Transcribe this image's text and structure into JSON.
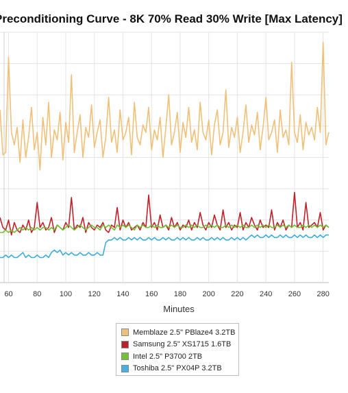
{
  "chart_data": {
    "type": "line",
    "title": "Preconditioning Curve - 8K 70% Read 30% Write [Max Latency]",
    "xlabel": "Minutes",
    "ylabel": "",
    "x_ticks": [
      60,
      80,
      100,
      120,
      140,
      160,
      180,
      200,
      220,
      240,
      260,
      280
    ],
    "xlim": [
      54,
      284
    ],
    "y_tick_count": 8,
    "grid": true,
    "legend_position": "bottom",
    "series": [
      {
        "name": "Memblaze 2.5\" PBlaze4 3.2TB",
        "color": "#f0c078",
        "swatch": "#efbf7d",
        "x": [
          54,
          56,
          58,
          60,
          62,
          64,
          66,
          68,
          70,
          72,
          74,
          76,
          78,
          80,
          82,
          84,
          86,
          88,
          90,
          92,
          94,
          96,
          98,
          100,
          102,
          104,
          106,
          108,
          110,
          112,
          114,
          116,
          118,
          120,
          122,
          124,
          126,
          128,
          130,
          132,
          134,
          136,
          138,
          140,
          142,
          144,
          146,
          148,
          150,
          152,
          154,
          156,
          158,
          160,
          162,
          164,
          166,
          168,
          170,
          172,
          174,
          176,
          178,
          180,
          182,
          184,
          186,
          188,
          190,
          192,
          194,
          196,
          198,
          200,
          202,
          204,
          206,
          208,
          210,
          212,
          214,
          216,
          218,
          220,
          222,
          224,
          226,
          228,
          230,
          232,
          234,
          236,
          238,
          240,
          242,
          244,
          246,
          248,
          250,
          252,
          254,
          256,
          258,
          260,
          262,
          264,
          266,
          268,
          270,
          272,
          274,
          276,
          278,
          280,
          282,
          284
        ],
        "values": [
          0.69,
          0.51,
          0.52,
          0.9,
          0.6,
          0.55,
          0.62,
          0.48,
          0.65,
          0.5,
          0.58,
          0.7,
          0.53,
          0.6,
          0.45,
          0.66,
          0.55,
          0.72,
          0.5,
          0.61,
          0.57,
          0.68,
          0.49,
          0.64,
          0.56,
          0.83,
          0.52,
          0.6,
          0.67,
          0.5,
          0.62,
          0.58,
          0.71,
          0.54,
          0.6,
          0.65,
          0.5,
          0.58,
          0.74,
          0.56,
          0.61,
          0.52,
          0.69,
          0.57,
          0.6,
          0.66,
          0.51,
          0.72,
          0.58,
          0.55,
          0.63,
          0.6,
          0.7,
          0.53,
          0.61,
          0.57,
          0.66,
          0.5,
          0.62,
          0.75,
          0.55,
          0.6,
          0.68,
          0.52,
          0.64,
          0.58,
          0.7,
          0.56,
          0.61,
          0.53,
          0.72,
          0.6,
          0.57,
          0.65,
          0.51,
          0.63,
          0.69,
          0.55,
          0.6,
          0.77,
          0.54,
          0.62,
          0.58,
          0.66,
          0.52,
          0.6,
          0.71,
          0.56,
          0.63,
          0.59,
          0.68,
          0.53,
          0.62,
          0.74,
          0.57,
          0.6,
          0.65,
          0.52,
          0.69,
          0.58,
          0.61,
          0.55,
          0.88,
          0.6,
          0.56,
          0.67,
          0.53,
          0.64,
          0.59,
          0.62,
          0.57,
          0.7,
          0.6,
          0.96,
          0.55,
          0.6
        ]
      },
      {
        "name": "Samsung 2.5\" XS1715 1.6TB",
        "color": "#c0202a",
        "swatch": "#b8232c",
        "x": [
          54,
          56,
          58,
          60,
          62,
          64,
          66,
          68,
          70,
          72,
          74,
          76,
          78,
          80,
          82,
          84,
          86,
          88,
          90,
          92,
          94,
          96,
          98,
          100,
          102,
          104,
          106,
          108,
          110,
          112,
          114,
          116,
          118,
          120,
          122,
          124,
          126,
          128,
          130,
          132,
          134,
          136,
          138,
          140,
          142,
          144,
          146,
          148,
          150,
          152,
          154,
          156,
          158,
          160,
          162,
          164,
          166,
          168,
          170,
          172,
          174,
          176,
          178,
          180,
          182,
          184,
          186,
          188,
          190,
          192,
          194,
          196,
          198,
          200,
          202,
          204,
          206,
          208,
          210,
          212,
          214,
          216,
          218,
          220,
          222,
          224,
          226,
          228,
          230,
          232,
          234,
          236,
          238,
          240,
          242,
          244,
          246,
          248,
          250,
          252,
          254,
          256,
          258,
          260,
          262,
          264,
          266,
          268,
          270,
          272,
          274,
          276,
          278,
          280,
          282,
          284
        ],
        "values": [
          0.26,
          0.22,
          0.21,
          0.25,
          0.19,
          0.24,
          0.21,
          0.2,
          0.23,
          0.21,
          0.25,
          0.2,
          0.22,
          0.32,
          0.22,
          0.24,
          0.21,
          0.22,
          0.26,
          0.2,
          0.23,
          0.22,
          0.21,
          0.24,
          0.22,
          0.34,
          0.21,
          0.23,
          0.22,
          0.26,
          0.2,
          0.24,
          0.22,
          0.21,
          0.23,
          0.22,
          0.24,
          0.21,
          0.2,
          0.23,
          0.22,
          0.3,
          0.21,
          0.25,
          0.22,
          0.24,
          0.21,
          0.22,
          0.23,
          0.21,
          0.24,
          0.22,
          0.35,
          0.22,
          0.24,
          0.21,
          0.27,
          0.22,
          0.23,
          0.21,
          0.26,
          0.22,
          0.24,
          0.21,
          0.23,
          0.22,
          0.25,
          0.21,
          0.24,
          0.22,
          0.28,
          0.23,
          0.21,
          0.24,
          0.22,
          0.27,
          0.23,
          0.21,
          0.29,
          0.22,
          0.24,
          0.21,
          0.23,
          0.22,
          0.28,
          0.21,
          0.24,
          0.22,
          0.26,
          0.23,
          0.21,
          0.25,
          0.22,
          0.23,
          0.22,
          0.29,
          0.21,
          0.24,
          0.22,
          0.25,
          0.21,
          0.23,
          0.22,
          0.36,
          0.22,
          0.24,
          0.21,
          0.32,
          0.22,
          0.23,
          0.24,
          0.22,
          0.28,
          0.21,
          0.23,
          0.22
        ]
      },
      {
        "name": "Intel 2.5\" P3700 2TB",
        "color": "#6cc030",
        "swatch": "#74c13a",
        "x": [
          54,
          56,
          58,
          60,
          62,
          64,
          66,
          68,
          70,
          72,
          74,
          76,
          78,
          80,
          82,
          84,
          86,
          88,
          90,
          92,
          94,
          96,
          98,
          100,
          102,
          104,
          106,
          108,
          110,
          112,
          114,
          116,
          118,
          120,
          122,
          124,
          126,
          128,
          130,
          132,
          134,
          136,
          138,
          140,
          142,
          144,
          146,
          148,
          150,
          152,
          154,
          156,
          158,
          160,
          162,
          164,
          166,
          168,
          170,
          172,
          174,
          176,
          178,
          180,
          182,
          184,
          186,
          188,
          190,
          192,
          194,
          196,
          198,
          200,
          202,
          204,
          206,
          208,
          210,
          212,
          214,
          216,
          218,
          220,
          222,
          224,
          226,
          228,
          230,
          232,
          234,
          236,
          238,
          240,
          242,
          244,
          246,
          248,
          250,
          252,
          254,
          256,
          258,
          260,
          262,
          264,
          266,
          268,
          270,
          272,
          274,
          276,
          278,
          280,
          282,
          284
        ],
        "values": [
          0.2,
          0.2,
          0.21,
          0.2,
          0.21,
          0.2,
          0.21,
          0.22,
          0.21,
          0.22,
          0.21,
          0.22,
          0.21,
          0.22,
          0.21,
          0.22,
          0.22,
          0.21,
          0.22,
          0.21,
          0.23,
          0.22,
          0.21,
          0.22,
          0.23,
          0.22,
          0.21,
          0.22,
          0.23,
          0.22,
          0.21,
          0.22,
          0.23,
          0.22,
          0.22,
          0.21,
          0.23,
          0.22,
          0.23,
          0.22,
          0.21,
          0.23,
          0.22,
          0.23,
          0.22,
          0.23,
          0.22,
          0.21,
          0.23,
          0.22,
          0.23,
          0.22,
          0.22,
          0.23,
          0.22,
          0.23,
          0.22,
          0.22,
          0.23,
          0.22,
          0.23,
          0.22,
          0.23,
          0.22,
          0.22,
          0.23,
          0.22,
          0.23,
          0.22,
          0.23,
          0.22,
          0.22,
          0.23,
          0.22,
          0.23,
          0.22,
          0.23,
          0.22,
          0.22,
          0.23,
          0.22,
          0.23,
          0.22,
          0.23,
          0.22,
          0.23,
          0.22,
          0.22,
          0.23,
          0.22,
          0.23,
          0.22,
          0.23,
          0.22,
          0.23,
          0.22,
          0.22,
          0.23,
          0.22,
          0.23,
          0.22,
          0.23,
          0.22,
          0.23,
          0.22,
          0.22,
          0.23,
          0.22,
          0.23,
          0.22,
          0.23,
          0.22,
          0.23,
          0.22,
          0.23,
          0.22
        ]
      },
      {
        "name": "Toshiba 2.5\" PX04P 3.2TB",
        "color": "#3aacdf",
        "swatch": "#48b1e0",
        "x": [
          54,
          56,
          58,
          60,
          62,
          64,
          66,
          68,
          70,
          72,
          74,
          76,
          78,
          80,
          82,
          84,
          86,
          88,
          90,
          92,
          94,
          96,
          98,
          100,
          102,
          104,
          106,
          108,
          110,
          112,
          114,
          116,
          118,
          120,
          122,
          124,
          126,
          128,
          130,
          132,
          134,
          136,
          138,
          140,
          142,
          144,
          146,
          148,
          150,
          152,
          154,
          156,
          158,
          160,
          162,
          164,
          166,
          168,
          170,
          172,
          174,
          176,
          178,
          180,
          182,
          184,
          186,
          188,
          190,
          192,
          194,
          196,
          198,
          200,
          202,
          204,
          206,
          208,
          210,
          212,
          214,
          216,
          218,
          220,
          222,
          224,
          226,
          228,
          230,
          232,
          234,
          236,
          238,
          240,
          242,
          244,
          246,
          248,
          250,
          252,
          254,
          256,
          258,
          260,
          262,
          264,
          266,
          268,
          270,
          272,
          274,
          276,
          278,
          280,
          282,
          284
        ],
        "values": [
          0.1,
          0.1,
          0.11,
          0.1,
          0.11,
          0.1,
          0.1,
          0.11,
          0.12,
          0.1,
          0.11,
          0.1,
          0.1,
          0.11,
          0.1,
          0.1,
          0.11,
          0.1,
          0.12,
          0.13,
          0.12,
          0.13,
          0.11,
          0.12,
          0.11,
          0.12,
          0.11,
          0.11,
          0.12,
          0.11,
          0.11,
          0.12,
          0.11,
          0.11,
          0.12,
          0.11,
          0.11,
          0.16,
          0.17,
          0.17,
          0.18,
          0.17,
          0.18,
          0.17,
          0.17,
          0.18,
          0.17,
          0.18,
          0.17,
          0.18,
          0.17,
          0.17,
          0.18,
          0.17,
          0.18,
          0.17,
          0.17,
          0.18,
          0.17,
          0.18,
          0.17,
          0.17,
          0.18,
          0.17,
          0.18,
          0.17,
          0.18,
          0.17,
          0.17,
          0.18,
          0.17,
          0.18,
          0.17,
          0.17,
          0.18,
          0.17,
          0.18,
          0.17,
          0.18,
          0.17,
          0.17,
          0.18,
          0.17,
          0.18,
          0.17,
          0.18,
          0.17,
          0.18,
          0.19,
          0.18,
          0.19,
          0.18,
          0.18,
          0.19,
          0.18,
          0.19,
          0.18,
          0.18,
          0.19,
          0.18,
          0.19,
          0.18,
          0.18,
          0.19,
          0.18,
          0.19,
          0.18,
          0.19,
          0.18,
          0.18,
          0.19,
          0.18,
          0.19,
          0.18,
          0.19,
          0.19
        ]
      }
    ]
  }
}
